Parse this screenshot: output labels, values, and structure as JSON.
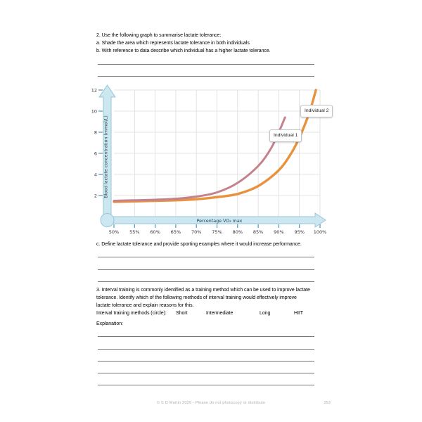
{
  "questions": {
    "q2_lines": [
      "2. Use the following graph to summarise lactate tolerance:",
      "a. Shade the area which represents lactate tolerance in both individuals",
      "b. With reference to data describe which individual has a higher lactate tolerance."
    ],
    "qc": "c. Define lactate tolerance and provide sporting examples where it would increase performance.",
    "q3_lines": [
      "3. Interval training is commonly identified as a training method which can be used to improve lactate",
      "tolerance. Identify which of the following methods of interval training would effectively improve",
      "lactate tolerance and explain reasons for this."
    ],
    "methods_label": "Interval training methods (circle):",
    "methods": {
      "short": "Short",
      "intermediate": "Intermediate",
      "long": "Long",
      "hiit": "HIIT"
    },
    "explanation_label": "Explanation:"
  },
  "footer": {
    "copyright": "© S D Martin 2026 - Please do not photocopy or distribute",
    "page_number": "253"
  },
  "chart_data": {
    "type": "line",
    "xlabel": "Percentage VO₂ max",
    "ylabel": "Blood lactate concentration (mmol/L)",
    "xlim": [
      50,
      100
    ],
    "ylim": [
      0,
      12
    ],
    "grid": true,
    "x_tick_values": [
      50,
      55,
      60,
      65,
      70,
      75,
      80,
      85,
      90,
      95,
      100
    ],
    "x_tick_labels": [
      "50%",
      "55%",
      "60%",
      "65%",
      "70%",
      "75%",
      "80%",
      "85%",
      "90%",
      "95%",
      "100%"
    ],
    "y_tick_values": [
      2,
      4,
      6,
      8,
      10,
      12
    ],
    "legend_position": "labels at end of curves",
    "series": [
      {
        "name": "Individual 1",
        "color": "#c4828d",
        "points": [
          [
            50,
            1.5
          ],
          [
            55,
            1.55
          ],
          [
            60,
            1.6
          ],
          [
            65,
            1.7
          ],
          [
            70,
            1.9
          ],
          [
            75,
            2.3
          ],
          [
            80,
            3.2
          ],
          [
            85,
            4.8
          ],
          [
            88,
            6.4
          ],
          [
            90,
            8.0
          ],
          [
            91.5,
            9.4
          ]
        ]
      },
      {
        "name": "Individual 2",
        "color": "#e8923e",
        "points": [
          [
            50,
            1.4
          ],
          [
            55,
            1.45
          ],
          [
            60,
            1.5
          ],
          [
            65,
            1.55
          ],
          [
            70,
            1.65
          ],
          [
            75,
            1.85
          ],
          [
            80,
            2.15
          ],
          [
            85,
            2.9
          ],
          [
            90,
            4.4
          ],
          [
            93,
            6.0
          ],
          [
            95,
            7.5
          ],
          [
            97,
            9.4
          ],
          [
            98,
            10.6
          ],
          [
            99,
            12
          ]
        ]
      }
    ],
    "axis_style": {
      "bar_fill": "#cde7f1",
      "bar_stroke": "#96c6da",
      "tick_color": "#4f97b5",
      "grid_color": "#dcdcdc"
    }
  }
}
